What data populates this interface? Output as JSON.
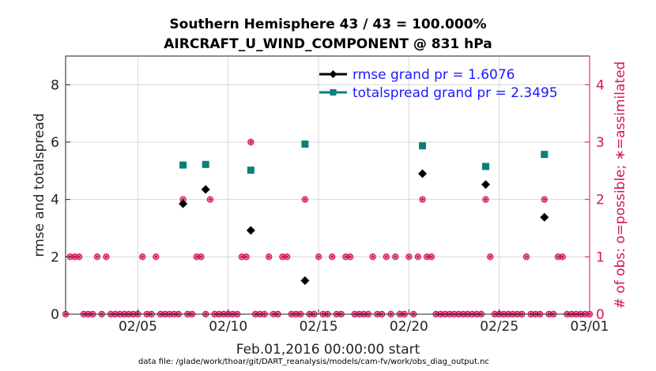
{
  "title_line1": "Southern Hemisphere 43 / 43 = 100.000%",
  "title_line2": "AIRCRAFT_U_WIND_COMPONENT @ 831 hPa",
  "ylabel_left": "rmse and totalspread",
  "ylabel_right": "# of obs: o=possible; ∗=assimilated",
  "xlabel": "Feb.01,2016 00:00:00 start",
  "footnote": "data file: /glade/work/thoar/git/DART_reanalysis/models/cam-fv/work/obs_diag_output.nc",
  "colors": {
    "rmse": "#000000",
    "spread": "#0b7f7a",
    "obs": "#d6135f",
    "legend_text": "#1a1aff",
    "grid": "#d9d9d9"
  },
  "chart_data": {
    "type": "scatter",
    "x_unit": "days from Feb.01,2016",
    "xlim": [
      0,
      29
    ],
    "xtick_values": [
      4,
      9,
      14,
      19,
      24,
      29
    ],
    "xtick_labels": [
      "02/05",
      "02/10",
      "02/15",
      "02/20",
      "02/25",
      "03/01"
    ],
    "ylim_left": [
      0,
      9
    ],
    "ytick_left": [
      0,
      2,
      4,
      6,
      8
    ],
    "ylim_right": [
      0,
      4.5
    ],
    "ytick_right": [
      0,
      1,
      2,
      3,
      4
    ],
    "grid": true,
    "legend_position": "top-right",
    "series": [
      {
        "name": "rmse grand pr = 1.6076",
        "marker": "diamond",
        "axis": "left",
        "points": [
          [
            6.5,
            3.85
          ],
          [
            7.75,
            4.35
          ],
          [
            10.25,
            2.92
          ],
          [
            13.25,
            1.17
          ],
          [
            19.75,
            4.9
          ],
          [
            23.25,
            4.52
          ],
          [
            26.5,
            3.38
          ]
        ]
      },
      {
        "name": "totalspread grand pr = 2.3495",
        "marker": "square",
        "axis": "left",
        "points": [
          [
            6.5,
            5.2
          ],
          [
            7.75,
            5.22
          ],
          [
            10.25,
            5.02
          ],
          [
            13.25,
            5.93
          ],
          [
            19.75,
            5.87
          ],
          [
            23.25,
            5.15
          ],
          [
            26.5,
            5.57
          ]
        ]
      },
      {
        "name": "obs",
        "marker": "circle-star",
        "axis": "right",
        "points": [
          [
            0,
            0
          ],
          [
            0.25,
            1
          ],
          [
            0.5,
            1
          ],
          [
            0.75,
            1
          ],
          [
            1,
            0
          ],
          [
            1.25,
            0
          ],
          [
            1.5,
            0
          ],
          [
            1.75,
            1
          ],
          [
            2,
            0
          ],
          [
            2.25,
            1
          ],
          [
            2.5,
            0
          ],
          [
            2.75,
            0
          ],
          [
            3,
            0
          ],
          [
            3.25,
            0
          ],
          [
            3.5,
            0
          ],
          [
            3.75,
            0
          ],
          [
            4,
            0
          ],
          [
            4.25,
            1
          ],
          [
            4.5,
            0
          ],
          [
            4.75,
            0
          ],
          [
            5,
            1
          ],
          [
            5.25,
            0
          ],
          [
            5.5,
            0
          ],
          [
            5.75,
            0
          ],
          [
            6,
            0
          ],
          [
            6.25,
            0
          ],
          [
            6.5,
            2
          ],
          [
            6.75,
            0
          ],
          [
            7,
            0
          ],
          [
            7.25,
            1
          ],
          [
            7.5,
            1
          ],
          [
            7.75,
            0
          ],
          [
            8,
            2
          ],
          [
            8.25,
            0
          ],
          [
            8.5,
            0
          ],
          [
            8.75,
            0
          ],
          [
            9,
            0
          ],
          [
            9.25,
            0
          ],
          [
            9.5,
            0
          ],
          [
            9.75,
            1
          ],
          [
            10,
            1
          ],
          [
            10.25,
            3
          ],
          [
            10.5,
            0
          ],
          [
            10.75,
            0
          ],
          [
            11,
            0
          ],
          [
            11.25,
            1
          ],
          [
            11.5,
            0
          ],
          [
            11.75,
            0
          ],
          [
            12,
            1
          ],
          [
            12.25,
            1
          ],
          [
            12.5,
            0
          ],
          [
            12.75,
            0
          ],
          [
            13,
            0
          ],
          [
            13.25,
            2
          ],
          [
            13.5,
            0
          ],
          [
            13.75,
            0
          ],
          [
            14,
            1
          ],
          [
            14.25,
            0
          ],
          [
            14.5,
            0
          ],
          [
            14.75,
            1
          ],
          [
            15,
            0
          ],
          [
            15.25,
            0
          ],
          [
            15.5,
            1
          ],
          [
            15.75,
            1
          ],
          [
            16,
            0
          ],
          [
            16.25,
            0
          ],
          [
            16.5,
            0
          ],
          [
            16.75,
            0
          ],
          [
            17,
            1
          ],
          [
            17.25,
            0
          ],
          [
            17.5,
            0
          ],
          [
            17.75,
            1
          ],
          [
            18,
            0
          ],
          [
            18.25,
            1
          ],
          [
            18.5,
            0
          ],
          [
            18.75,
            0
          ],
          [
            19,
            1
          ],
          [
            19.25,
            0
          ],
          [
            19.5,
            1
          ],
          [
            19.75,
            2
          ],
          [
            20,
            1
          ],
          [
            20.25,
            1
          ],
          [
            20.5,
            0
          ],
          [
            20.75,
            0
          ],
          [
            21,
            0
          ],
          [
            21.25,
            0
          ],
          [
            21.5,
            0
          ],
          [
            21.75,
            0
          ],
          [
            22,
            0
          ],
          [
            22.25,
            0
          ],
          [
            22.5,
            0
          ],
          [
            22.75,
            0
          ],
          [
            23,
            0
          ],
          [
            23.25,
            2
          ],
          [
            23.5,
            1
          ],
          [
            23.75,
            0
          ],
          [
            24,
            0
          ],
          [
            24.25,
            0
          ],
          [
            24.5,
            0
          ],
          [
            24.75,
            0
          ],
          [
            25,
            0
          ],
          [
            25.25,
            0
          ],
          [
            25.5,
            1
          ],
          [
            25.75,
            0
          ],
          [
            26,
            0
          ],
          [
            26.25,
            0
          ],
          [
            26.5,
            2
          ],
          [
            26.75,
            0
          ],
          [
            27,
            0
          ],
          [
            27.25,
            1
          ],
          [
            27.5,
            1
          ],
          [
            27.75,
            0
          ],
          [
            28,
            0
          ],
          [
            28.25,
            0
          ],
          [
            28.5,
            0
          ],
          [
            28.75,
            0
          ],
          [
            29,
            0
          ]
        ]
      }
    ]
  }
}
